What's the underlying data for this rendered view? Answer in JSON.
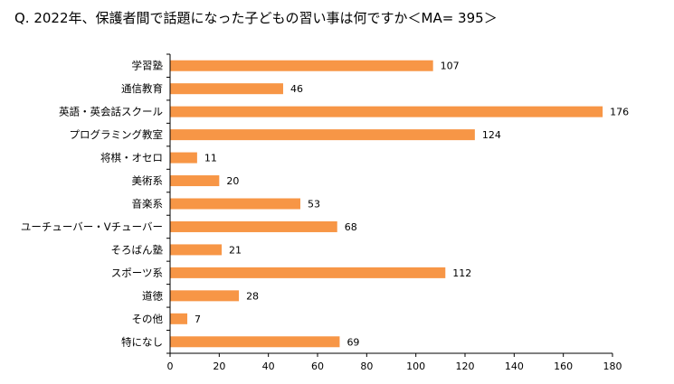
{
  "chart_data": {
    "type": "bar",
    "orientation": "horizontal",
    "title": "Q. 2022年、保護者間で話題になった子どもの習い事は何ですか＜MA= 395＞",
    "categories": [
      "学習塾",
      "通信教育",
      "英語・英会話スクール",
      "プログラミング教室",
      "将棋・オセロ",
      "美術系",
      "音楽系",
      "ユーチューバー・Vチューバー",
      "そろばん塾",
      "スポーツ系",
      "道徳",
      "その他",
      "特になし"
    ],
    "values": [
      107,
      46,
      176,
      124,
      11,
      20,
      53,
      68,
      21,
      112,
      28,
      7,
      69
    ],
    "xlim": [
      0,
      180
    ],
    "xticks": [
      0,
      20,
      40,
      60,
      80,
      100,
      120,
      140,
      160,
      180
    ],
    "grid": false,
    "legend": "none",
    "data_labels": true,
    "colors": {
      "bar": "#F79646",
      "axis": "#000000",
      "text": "#000000"
    }
  }
}
